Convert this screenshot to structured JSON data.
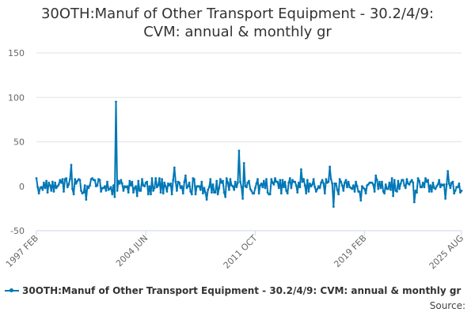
{
  "chart_data": {
    "type": "line",
    "title_lines": [
      "30OTH:Manuf of Other Transport Equipment - 30.2/4/9:",
      "CVM: annual & monthly gr"
    ],
    "ylim": [
      -50,
      150
    ],
    "yticks": [
      "150",
      "100",
      "50",
      "0",
      "-50"
    ],
    "ytick_values": [
      150,
      100,
      50,
      0,
      -50
    ],
    "x_range": [
      "1997-02",
      "2025-08"
    ],
    "xtick_labels": [
      "1997 FEB",
      "2004 JUN",
      "2011 OCT",
      "2019 FEB",
      "2025 AUG"
    ],
    "xtick_dates": [
      "1997-02",
      "2004-06",
      "2011-10",
      "2019-02",
      "2025-08"
    ],
    "grid": true,
    "legend_position": "bottom",
    "series": [
      {
        "name": "30OTH:Manuf of Other Transport Equipment - 30.2/4/9: CVM: annual & monthly gr",
        "color": "#0077b6",
        "key_points": [
          {
            "x": "1997-02",
            "y": 9
          },
          {
            "x": "1999-06",
            "y": 24
          },
          {
            "x": "2000-06",
            "y": -15
          },
          {
            "x": "2002-05",
            "y": -12
          },
          {
            "x": "2002-06",
            "y": 95
          },
          {
            "x": "2002-07",
            "y": -5
          },
          {
            "x": "2006-05",
            "y": 21
          },
          {
            "x": "2008-07",
            "y": -15
          },
          {
            "x": "2009-10",
            "y": -12
          },
          {
            "x": "2010-09",
            "y": 40
          },
          {
            "x": "2011-01",
            "y": 26
          },
          {
            "x": "2014-11",
            "y": 19
          },
          {
            "x": "2016-10",
            "y": 22
          },
          {
            "x": "2017-01",
            "y": -23
          },
          {
            "x": "2018-11",
            "y": -16
          },
          {
            "x": "2019-11",
            "y": 12
          },
          {
            "x": "2022-06",
            "y": -18
          },
          {
            "x": "2024-09",
            "y": 17
          },
          {
            "x": "2025-08",
            "y": -5
          }
        ]
      }
    ]
  },
  "legend": {
    "label": "30OTH:Manuf of Other Transport Equipment - 30.2/4/9: CVM: annual & monthly gr"
  },
  "source": {
    "label": "Source:"
  }
}
